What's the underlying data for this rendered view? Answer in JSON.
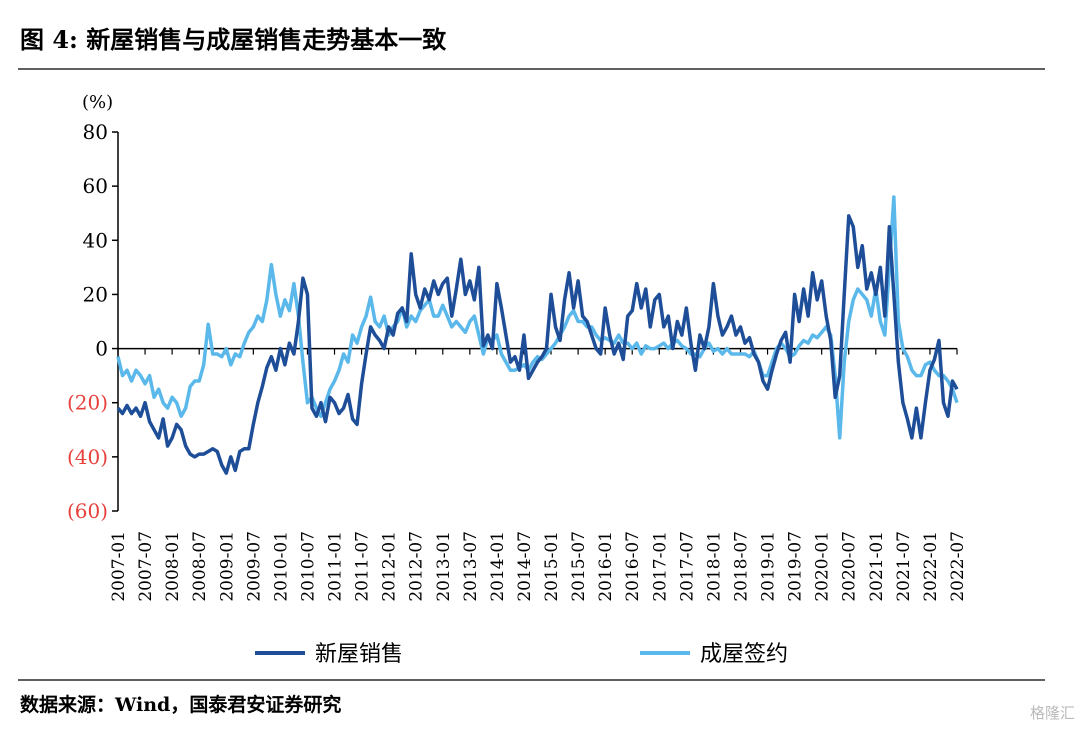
{
  "chart_data": {
    "type": "line",
    "title": "图 4:  新屋销售与成屋销售走势基本一致",
    "y_unit": "(%)",
    "source": "数据来源：Wind，国泰君安证券研究",
    "watermark": "格隆汇",
    "categories": [
      "2007-01",
      null,
      null,
      null,
      null,
      null,
      "2007-07",
      null,
      null,
      null,
      null,
      null,
      "2008-01",
      null,
      null,
      null,
      null,
      null,
      "2008-07",
      null,
      null,
      null,
      null,
      null,
      "2009-01",
      null,
      null,
      null,
      null,
      null,
      "2009-07",
      null,
      null,
      null,
      null,
      null,
      "2010-01",
      null,
      null,
      null,
      null,
      null,
      "2010-07",
      null,
      null,
      null,
      null,
      null,
      "2011-01",
      null,
      null,
      null,
      null,
      null,
      "2011-07",
      null,
      null,
      null,
      null,
      null,
      "2012-01",
      null,
      null,
      null,
      null,
      null,
      "2012-07",
      null,
      null,
      null,
      null,
      null,
      "2013-01",
      null,
      null,
      null,
      null,
      null,
      "2013-07",
      null,
      null,
      null,
      null,
      null,
      "2014-01",
      null,
      null,
      null,
      null,
      null,
      "2014-07",
      null,
      null,
      null,
      null,
      null,
      "2015-01",
      null,
      null,
      null,
      null,
      null,
      "2015-07",
      null,
      null,
      null,
      null,
      null,
      "2016-01",
      null,
      null,
      null,
      null,
      null,
      "2016-07",
      null,
      null,
      null,
      null,
      null,
      "2017-01",
      null,
      null,
      null,
      null,
      null,
      "2017-07",
      null,
      null,
      null,
      null,
      null,
      "2018-01",
      null,
      null,
      null,
      null,
      null,
      "2018-07",
      null,
      null,
      null,
      null,
      null,
      "2019-01",
      null,
      null,
      null,
      null,
      null,
      "2019-07",
      null,
      null,
      null,
      null,
      null,
      "2020-01",
      null,
      null,
      null,
      null,
      null,
      "2020-07",
      null,
      null,
      null,
      null,
      null,
      "2021-01",
      null,
      null,
      null,
      null,
      null,
      "2021-07",
      null,
      null,
      null,
      null,
      null,
      "2022-01",
      null,
      null,
      null,
      null,
      null,
      "2022-07"
    ],
    "series": [
      {
        "name": "新屋销售",
        "color": "#1f4e99",
        "values": [
          -22,
          -24,
          -21,
          -24,
          -22,
          -25,
          -20,
          -27,
          -30,
          -33,
          -26,
          -36,
          -33,
          -28,
          -30,
          -36,
          -39,
          -40,
          -39,
          -39,
          -38,
          -37,
          -38,
          -43,
          -46,
          -40,
          -45,
          -38,
          -37,
          -37,
          -28,
          -20,
          -14,
          -7,
          -3,
          -8,
          0,
          -6,
          2,
          -2,
          10,
          26,
          20,
          -22,
          -25,
          -20,
          -27,
          -18,
          -20,
          -24,
          -22,
          -17,
          -26,
          -28,
          -13,
          -2,
          8,
          5,
          3,
          0,
          8,
          5,
          13,
          15,
          10,
          35,
          20,
          15,
          22,
          18,
          25,
          20,
          24,
          26,
          12,
          22,
          33,
          20,
          25,
          18,
          30,
          1,
          5,
          0,
          24,
          15,
          5,
          -5,
          -3,
          -8,
          5,
          -11,
          -8,
          -5,
          -3,
          0,
          20,
          8,
          3,
          18,
          28,
          15,
          25,
          12,
          10,
          5,
          0,
          -2,
          15,
          5,
          -2,
          2,
          -4,
          12,
          14,
          24,
          15,
          22,
          8,
          18,
          20,
          8,
          12,
          0,
          10,
          5,
          15,
          2,
          -8,
          5,
          0,
          8,
          24,
          12,
          5,
          8,
          12,
          5,
          8,
          2,
          4,
          -2,
          -5,
          -12,
          -15,
          -8,
          -2,
          3,
          6,
          -5,
          20,
          10,
          22,
          12,
          28,
          18,
          25,
          12,
          3,
          -18,
          -10,
          20,
          49,
          45,
          30,
          38,
          22,
          28,
          20,
          30,
          12,
          45,
          20,
          -5,
          -20,
          -26,
          -33,
          -22,
          -33,
          -20,
          -8,
          -4,
          3,
          -20,
          -25,
          -12,
          -15
        ]
      },
      {
        "name": "成屋签约",
        "color": "#5bb8ea",
        "values": [
          -3,
          -10,
          -8,
          -12,
          -8,
          -10,
          -13,
          -10,
          -18,
          -15,
          -20,
          -22,
          -18,
          -20,
          -25,
          -22,
          -14,
          -12,
          -12,
          -6,
          9,
          -2,
          -2,
          -3,
          0,
          -6,
          -2,
          -3,
          2,
          6,
          8,
          12,
          10,
          18,
          31,
          20,
          12,
          18,
          14,
          24,
          12,
          -5,
          -20,
          -18,
          -22,
          -25,
          -20,
          -15,
          -12,
          -8,
          -2,
          -5,
          5,
          2,
          8,
          12,
          19,
          10,
          8,
          12,
          5,
          8,
          10,
          15,
          8,
          12,
          10,
          14,
          16,
          18,
          12,
          12,
          16,
          12,
          8,
          10,
          8,
          6,
          10,
          12,
          5,
          -2,
          4,
          3,
          5,
          -2,
          -5,
          -8,
          -8,
          -7,
          -6,
          -8,
          -5,
          -3,
          -4,
          -2,
          0,
          2,
          5,
          8,
          12,
          14,
          10,
          10,
          8,
          8,
          5,
          3,
          4,
          3,
          2,
          5,
          2,
          2,
          0,
          2,
          -2,
          1,
          0,
          0,
          1,
          2,
          0,
          2,
          3,
          1,
          0,
          -2,
          -2,
          -3,
          0,
          2,
          -1,
          0,
          -2,
          0,
          -2,
          -2,
          -2,
          -2,
          -3,
          -1,
          -5,
          -10,
          -10,
          -5,
          0,
          2,
          0,
          -3,
          -2,
          1,
          3,
          2,
          5,
          4,
          6,
          8,
          5,
          -10,
          -33,
          -5,
          10,
          18,
          22,
          20,
          18,
          12,
          22,
          10,
          5,
          30,
          56,
          10,
          0,
          -3,
          -8,
          -10,
          -10,
          -6,
          -5,
          -8,
          -10,
          -10,
          -12,
          -15,
          -20
        ]
      }
    ],
    "ylim": [
      -60,
      80
    ],
    "yticks": [
      {
        "value": -60,
        "label": "(60)"
      },
      {
        "value": -40,
        "label": "(40)"
      },
      {
        "value": -20,
        "label": "(20)"
      },
      0,
      20,
      40,
      60,
      80
    ],
    "negative_tick_color": "#e8413c"
  }
}
